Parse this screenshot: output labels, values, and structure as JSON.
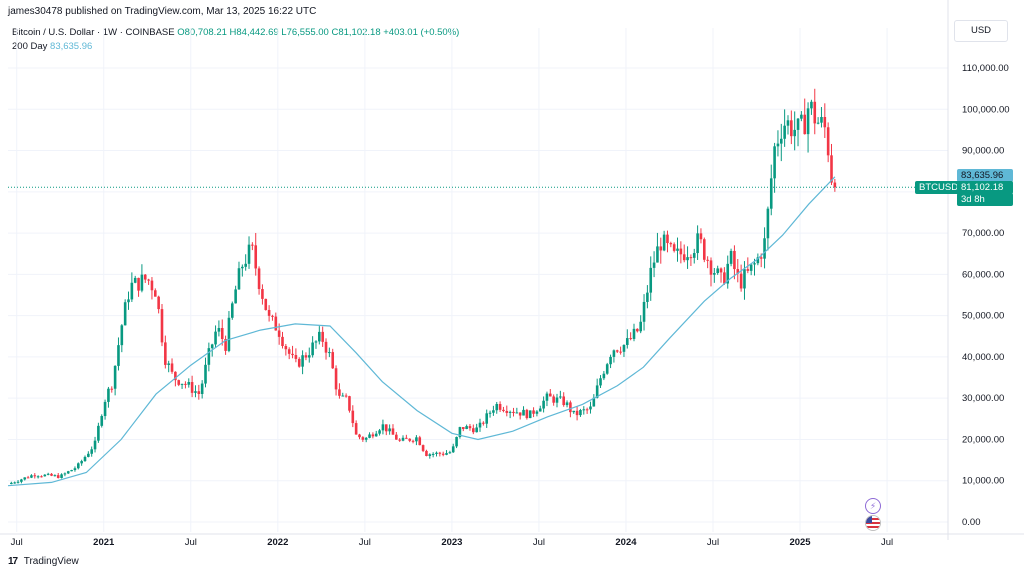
{
  "header": {
    "publisher": "james30478 published on TradingView.com, Mar 13, 2025 16:22 UTC"
  },
  "legend": {
    "symbol": "Bitcoin / U.S. Dollar · 1W · COINBASE",
    "open": "O80,708.21",
    "high": "H84,442.69",
    "low": "L76,555.00",
    "close": "C81,102.18",
    "change": "+403.01 (+0.50%)",
    "ma_label": "200 Day",
    "ma_value": "83,635.96"
  },
  "currency": "USD",
  "price_tags": {
    "ma": "83,635.96",
    "price": "81,102.18",
    "countdown": "3d 8h",
    "symbol": "BTCUSD"
  },
  "footer": {
    "brand": "TradingView",
    "logo": "17"
  },
  "colors": {
    "up": "#089981",
    "down": "#f23645",
    "ma": "#5fb8d6",
    "grid": "#f0f3fa"
  },
  "icons": [
    "lightning-event-icon",
    "us-flag-event-icon"
  ],
  "chart_data": {
    "type": "candlestick",
    "y_axis": {
      "min": 0,
      "max": 115000,
      "ticks": [
        0,
        10000,
        20000,
        30000,
        40000,
        50000,
        60000,
        70000,
        80000,
        90000,
        100000,
        110000
      ],
      "tick_labels": [
        "0.00",
        "10,000.00",
        "20,000.00",
        "30,000.00",
        "40,000.00",
        "50,000.00",
        "60,000.00",
        "70,000.00",
        "80,000.00",
        "90,000.00",
        "100,000.00",
        "110,000.00"
      ]
    },
    "x_axis": {
      "start": 2020.45,
      "end": 2025.85,
      "ticks": [
        {
          "t": 2020.5,
          "label": "Jul",
          "bold": false
        },
        {
          "t": 2021.0,
          "label": "2021",
          "bold": true
        },
        {
          "t": 2021.5,
          "label": "Jul",
          "bold": false
        },
        {
          "t": 2022.0,
          "label": "2022",
          "bold": true
        },
        {
          "t": 2022.5,
          "label": "Jul",
          "bold": false
        },
        {
          "t": 2023.0,
          "label": "2023",
          "bold": true
        },
        {
          "t": 2023.5,
          "label": "Jul",
          "bold": false
        },
        {
          "t": 2024.0,
          "label": "2024",
          "bold": true
        },
        {
          "t": 2024.5,
          "label": "Jul",
          "bold": false
        },
        {
          "t": 2025.0,
          "label": "2025",
          "bold": true
        },
        {
          "t": 2025.5,
          "label": "Jul",
          "bold": false
        }
      ]
    },
    "price_path": [
      [
        2020.45,
        9200
      ],
      [
        2020.6,
        11500
      ],
      [
        2020.75,
        11000
      ],
      [
        2020.85,
        13500
      ],
      [
        2020.95,
        19000
      ],
      [
        2021.0,
        29000
      ],
      [
        2021.05,
        34000
      ],
      [
        2021.1,
        47000
      ],
      [
        2021.15,
        57000
      ],
      [
        2021.25,
        59000
      ],
      [
        2021.3,
        56000
      ],
      [
        2021.35,
        40000
      ],
      [
        2021.4,
        35000
      ],
      [
        2021.45,
        34000
      ],
      [
        2021.55,
        31000
      ],
      [
        2021.6,
        40000
      ],
      [
        2021.65,
        47000
      ],
      [
        2021.7,
        43000
      ],
      [
        2021.75,
        55000
      ],
      [
        2021.8,
        63000
      ],
      [
        2021.85,
        66000
      ],
      [
        2021.9,
        57000
      ],
      [
        2021.95,
        49000
      ],
      [
        2022.0,
        47000
      ],
      [
        2022.05,
        42000
      ],
      [
        2022.1,
        38000
      ],
      [
        2022.15,
        40000
      ],
      [
        2022.25,
        45000
      ],
      [
        2022.3,
        40000
      ],
      [
        2022.35,
        30000
      ],
      [
        2022.4,
        29500
      ],
      [
        2022.45,
        21000
      ],
      [
        2022.5,
        20000
      ],
      [
        2022.6,
        23500
      ],
      [
        2022.7,
        19500
      ],
      [
        2022.8,
        20500
      ],
      [
        2022.85,
        16500
      ],
      [
        2022.95,
        16600
      ],
      [
        2023.0,
        17000
      ],
      [
        2023.05,
        23000
      ],
      [
        2023.15,
        22500
      ],
      [
        2023.25,
        28500
      ],
      [
        2023.35,
        27000
      ],
      [
        2023.45,
        26000
      ],
      [
        2023.55,
        30200
      ],
      [
        2023.65,
        29000
      ],
      [
        2023.7,
        26000
      ],
      [
        2023.8,
        27500
      ],
      [
        2023.85,
        34500
      ],
      [
        2023.92,
        42000
      ],
      [
        2024.0,
        43000
      ],
      [
        2024.08,
        47000
      ],
      [
        2024.15,
        62000
      ],
      [
        2024.2,
        68000
      ],
      [
        2024.28,
        64000
      ],
      [
        2024.35,
        66000
      ],
      [
        2024.42,
        68000
      ],
      [
        2024.48,
        63000
      ],
      [
        2024.55,
        58000
      ],
      [
        2024.6,
        64000
      ],
      [
        2024.65,
        58000
      ],
      [
        2024.7,
        60000
      ],
      [
        2024.75,
        63000
      ],
      [
        2024.8,
        68000
      ],
      [
        2024.85,
        90000
      ],
      [
        2024.9,
        97000
      ],
      [
        2024.95,
        96000
      ],
      [
        2025.0,
        94000
      ],
      [
        2025.05,
        101000
      ],
      [
        2025.1,
        97000
      ],
      [
        2025.15,
        95000
      ],
      [
        2025.18,
        84000
      ],
      [
        2025.2,
        80700
      ]
    ],
    "series": [
      {
        "name": "200 Day",
        "points": [
          [
            2020.45,
            8800
          ],
          [
            2020.7,
            9600
          ],
          [
            2020.9,
            12000
          ],
          [
            2021.1,
            20000
          ],
          [
            2021.3,
            31000
          ],
          [
            2021.5,
            38000
          ],
          [
            2021.7,
            44000
          ],
          [
            2021.9,
            46500
          ],
          [
            2022.1,
            48000
          ],
          [
            2022.3,
            47500
          ],
          [
            2022.45,
            41000
          ],
          [
            2022.6,
            34000
          ],
          [
            2022.8,
            27000
          ],
          [
            2023.0,
            21500
          ],
          [
            2023.15,
            20000
          ],
          [
            2023.35,
            22000
          ],
          [
            2023.55,
            25500
          ],
          [
            2023.75,
            28500
          ],
          [
            2023.95,
            33000
          ],
          [
            2024.1,
            37500
          ],
          [
            2024.25,
            44500
          ],
          [
            2024.45,
            53500
          ],
          [
            2024.6,
            59000
          ],
          [
            2024.75,
            63500
          ],
          [
            2024.9,
            69500
          ],
          [
            2025.05,
            77000
          ],
          [
            2025.2,
            83636
          ]
        ]
      }
    ],
    "last_price": 81102.18,
    "ma_last": 83635.96
  }
}
